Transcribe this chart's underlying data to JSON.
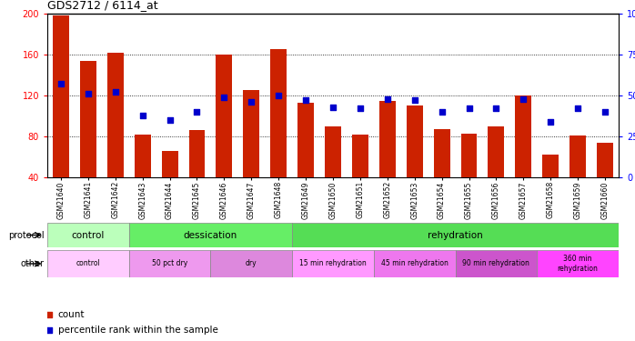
{
  "title": "GDS2712 / 6114_at",
  "samples": [
    "GSM21640",
    "GSM21641",
    "GSM21642",
    "GSM21643",
    "GSM21644",
    "GSM21645",
    "GSM21646",
    "GSM21647",
    "GSM21648",
    "GSM21649",
    "GSM21650",
    "GSM21651",
    "GSM21652",
    "GSM21653",
    "GSM21654",
    "GSM21655",
    "GSM21656",
    "GSM21657",
    "GSM21658",
    "GSM21659",
    "GSM21660"
  ],
  "count_values": [
    198,
    154,
    162,
    82,
    66,
    86,
    160,
    125,
    165,
    113,
    90,
    82,
    115,
    110,
    87,
    83,
    90,
    120,
    62,
    81,
    74
  ],
  "percentile_values": [
    57,
    51,
    52,
    38,
    35,
    40,
    49,
    46,
    50,
    47,
    43,
    42,
    48,
    47,
    40,
    42,
    42,
    48,
    34,
    42,
    40
  ],
  "ylim_left": [
    40,
    200
  ],
  "ylim_right": [
    0,
    100
  ],
  "yticks_left": [
    40,
    80,
    120,
    160,
    200
  ],
  "yticks_right": [
    0,
    25,
    50,
    75,
    100
  ],
  "bar_color": "#cc2200",
  "marker_color": "#0000cc",
  "protocol_groups": [
    {
      "label": "control",
      "start": 0,
      "end": 3,
      "color": "#bbffbb"
    },
    {
      "label": "dessication",
      "start": 3,
      "end": 9,
      "color": "#66ee66"
    },
    {
      "label": "rehydration",
      "start": 9,
      "end": 21,
      "color": "#55dd55"
    }
  ],
  "other_groups": [
    {
      "label": "control",
      "start": 0,
      "end": 3,
      "color": "#ffccff"
    },
    {
      "label": "50 pct dry",
      "start": 3,
      "end": 6,
      "color": "#ee99ee"
    },
    {
      "label": "dry",
      "start": 6,
      "end": 9,
      "color": "#dd88dd"
    },
    {
      "label": "15 min rehydration",
      "start": 9,
      "end": 12,
      "color": "#ff99ff"
    },
    {
      "label": "45 min rehydration",
      "start": 12,
      "end": 15,
      "color": "#ee77ee"
    },
    {
      "label": "90 min rehydration",
      "start": 15,
      "end": 18,
      "color": "#cc55cc"
    },
    {
      "label": "360 min\nrehydration",
      "start": 18,
      "end": 21,
      "color": "#ff44ff"
    }
  ]
}
